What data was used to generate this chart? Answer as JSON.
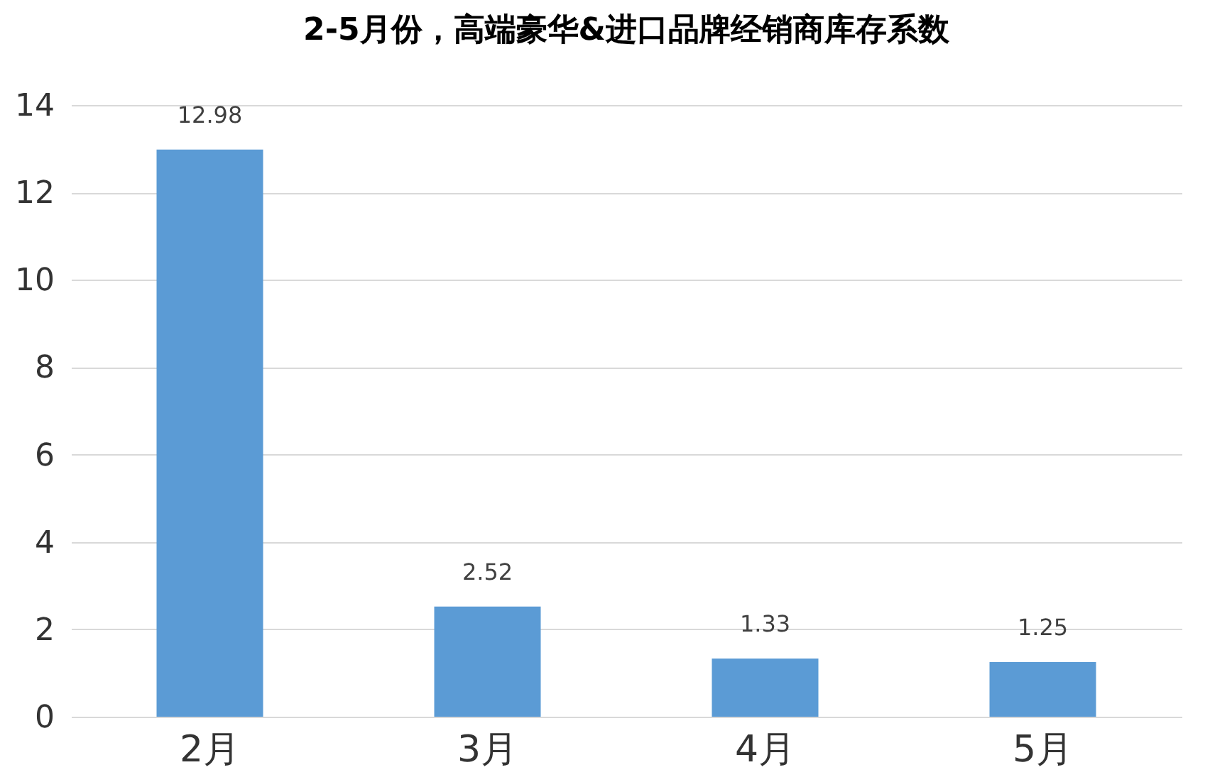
{
  "chart_data": {
    "type": "bar",
    "title": "2-5月份，高端豪华&进口品牌经销商库存系数",
    "categories": [
      "2月",
      "3月",
      "4月",
      "5月"
    ],
    "values": [
      12.98,
      2.52,
      1.33,
      1.25
    ],
    "color": "#5b9bd5",
    "ylim": [
      0,
      14
    ],
    "yticks": [
      0,
      2,
      4,
      6,
      8,
      10,
      12,
      14
    ],
    "grid": "y",
    "data_labels": true
  }
}
